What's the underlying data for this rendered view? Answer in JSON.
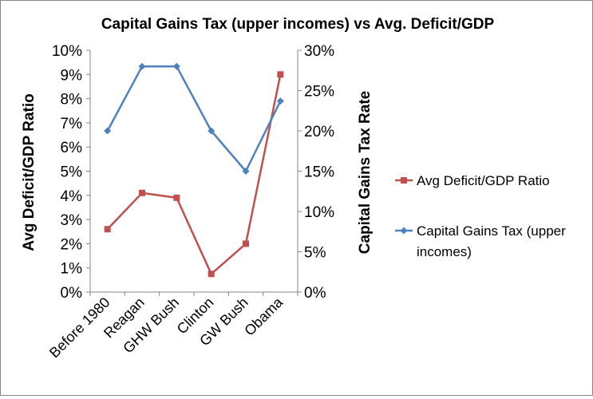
{
  "chart_data": {
    "type": "line",
    "title": "Capital Gains Tax (upper incomes) vs Avg. Deficit/GDP",
    "categories": [
      "Before 1980",
      "Reagan",
      "GHW Bush",
      "Clinton",
      "GW Bush",
      "Obama"
    ],
    "y_left": {
      "label": "Avg Deficit/GDP Ratio",
      "lim": [
        0,
        10
      ],
      "ticks": [
        "0%",
        "1%",
        "2%",
        "3%",
        "4%",
        "5%",
        "6%",
        "7%",
        "8%",
        "9%",
        "10%"
      ]
    },
    "y_right": {
      "label": "Capital Gains Tax Rate",
      "lim": [
        0,
        30
      ],
      "ticks": [
        "0%",
        "5%",
        "10%",
        "15%",
        "20%",
        "25%",
        "30%"
      ]
    },
    "grid": false,
    "legend_position": "right",
    "series": [
      {
        "name": "Avg Deficit/GDP  Ratio",
        "axis": "left",
        "marker": "square",
        "color": "#C0504D",
        "values": [
          2.6,
          4.1,
          3.9,
          0.75,
          2.0,
          9.0
        ]
      },
      {
        "name": "Capital Gains Tax (upper incomes)",
        "legend_lines": [
          "Capital Gains Tax (upper",
          "incomes)"
        ],
        "axis": "right",
        "marker": "diamond",
        "color": "#4F81BD",
        "values": [
          20,
          28,
          28,
          20,
          15,
          23.7
        ]
      }
    ]
  }
}
